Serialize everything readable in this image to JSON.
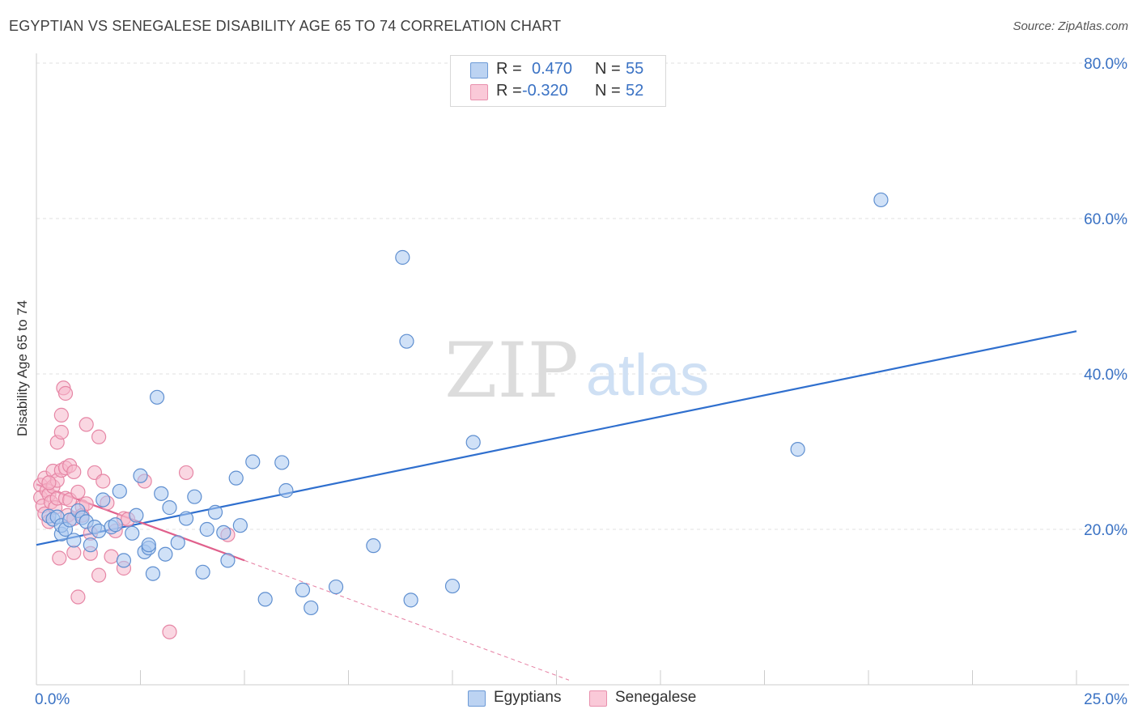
{
  "title": "EGYPTIAN VS SENEGALESE DISABILITY AGE 65 TO 74 CORRELATION CHART",
  "source": "Source: ZipAtlas.com",
  "watermark": {
    "zip": "ZIP",
    "atlas": "atlas"
  },
  "legend": {
    "rows": [
      {
        "r_label": "R =",
        "r_value": "0.470",
        "n_label": "N =",
        "n_value": "55"
      },
      {
        "r_label": "R =",
        "r_value": "-0.320",
        "n_label": "N =",
        "n_value": "52"
      }
    ]
  },
  "bottom_legend": {
    "egyptians": "Egyptians",
    "senegalese": "Senegalese"
  },
  "colors": {
    "egyptians_fill": "#a9c8f0",
    "egyptians_stroke": "#5f8fd0",
    "egyptians_line": "#2f6fce",
    "senegalese_fill": "#f6b7ca",
    "senegalese_stroke": "#e686a5",
    "senegalese_line": "#e0608c",
    "axis_text": "#3a72c4",
    "grid": "#e2e2e2"
  },
  "chart_data": {
    "type": "scatter",
    "title": "EGYPTIAN VS SENEGALESE DISABILITY AGE 65 TO 74 CORRELATION CHART",
    "xlabel": "",
    "ylabel": "Disability Age 65 to 74",
    "xlim": [
      0,
      25
    ],
    "ylim": [
      0,
      80
    ],
    "x_tick_labels": [
      "0.0%",
      "25.0%"
    ],
    "y_tick_labels": [
      "20.0%",
      "40.0%",
      "60.0%",
      "80.0%"
    ],
    "y_ticks": [
      20,
      40,
      60,
      80
    ],
    "grid": true,
    "series": [
      {
        "name": "Egyptians",
        "trend": {
          "x0": 0,
          "y0": 18.0,
          "x1": 25,
          "y1": 45.5,
          "dashed_to": null
        },
        "points": [
          [
            0.3,
            21.7
          ],
          [
            0.4,
            21.3
          ],
          [
            0.5,
            21.6
          ],
          [
            0.6,
            19.4
          ],
          [
            0.6,
            20.5
          ],
          [
            0.7,
            20.0
          ],
          [
            0.8,
            21.2
          ],
          [
            0.9,
            18.6
          ],
          [
            1.0,
            22.4
          ],
          [
            1.1,
            21.5
          ],
          [
            1.2,
            21.0
          ],
          [
            1.3,
            18.0
          ],
          [
            1.4,
            20.3
          ],
          [
            1.5,
            19.8
          ],
          [
            1.6,
            23.8
          ],
          [
            1.8,
            20.3
          ],
          [
            1.9,
            20.6
          ],
          [
            2.0,
            24.9
          ],
          [
            2.1,
            16.0
          ],
          [
            2.3,
            19.5
          ],
          [
            2.4,
            21.8
          ],
          [
            2.5,
            26.9
          ],
          [
            2.6,
            17.1
          ],
          [
            2.7,
            17.6
          ],
          [
            2.8,
            14.3
          ],
          [
            2.9,
            37.0
          ],
          [
            3.0,
            24.6
          ],
          [
            3.1,
            16.8
          ],
          [
            3.2,
            22.8
          ],
          [
            3.4,
            18.3
          ],
          [
            3.6,
            21.4
          ],
          [
            3.8,
            24.2
          ],
          [
            4.0,
            14.5
          ],
          [
            4.1,
            20.0
          ],
          [
            4.3,
            22.2
          ],
          [
            4.5,
            19.6
          ],
          [
            4.6,
            16.0
          ],
          [
            4.8,
            26.6
          ],
          [
            4.9,
            20.5
          ],
          [
            5.2,
            28.7
          ],
          [
            5.5,
            11.0
          ],
          [
            5.9,
            28.6
          ],
          [
            6.0,
            25.0
          ],
          [
            6.4,
            12.2
          ],
          [
            6.6,
            9.9
          ],
          [
            7.2,
            12.6
          ],
          [
            8.1,
            17.9
          ],
          [
            8.8,
            55.0
          ],
          [
            8.9,
            44.2
          ],
          [
            9.0,
            10.9
          ],
          [
            10.0,
            12.7
          ],
          [
            10.5,
            31.2
          ],
          [
            18.3,
            30.3
          ],
          [
            20.3,
            62.4
          ],
          [
            2.7,
            18.0
          ]
        ]
      },
      {
        "name": "Senegalese",
        "trend": {
          "x0": 0,
          "y0": 25.8,
          "x1": 5.0,
          "y1": 16.0,
          "dashed_to": {
            "x": 12.8,
            "y": 0.6
          }
        },
        "points": [
          [
            0.1,
            25.7
          ],
          [
            0.1,
            24.1
          ],
          [
            0.15,
            23.0
          ],
          [
            0.2,
            22.0
          ],
          [
            0.2,
            26.6
          ],
          [
            0.25,
            25.0
          ],
          [
            0.3,
            24.5
          ],
          [
            0.3,
            21.0
          ],
          [
            0.35,
            23.5
          ],
          [
            0.4,
            27.5
          ],
          [
            0.4,
            25.5
          ],
          [
            0.45,
            22.8
          ],
          [
            0.5,
            24.0
          ],
          [
            0.5,
            31.2
          ],
          [
            0.5,
            26.3
          ],
          [
            0.55,
            16.3
          ],
          [
            0.6,
            27.6
          ],
          [
            0.6,
            34.7
          ],
          [
            0.6,
            32.5
          ],
          [
            0.65,
            38.2
          ],
          [
            0.7,
            37.5
          ],
          [
            0.7,
            27.9
          ],
          [
            0.7,
            24.0
          ],
          [
            0.75,
            21.8
          ],
          [
            0.8,
            28.2
          ],
          [
            0.8,
            23.8
          ],
          [
            0.9,
            17.0
          ],
          [
            0.9,
            27.4
          ],
          [
            0.9,
            21.4
          ],
          [
            1.0,
            24.8
          ],
          [
            1.0,
            11.3
          ],
          [
            1.1,
            22.9
          ],
          [
            1.1,
            21.8
          ],
          [
            1.2,
            33.5
          ],
          [
            1.2,
            23.3
          ],
          [
            1.3,
            16.9
          ],
          [
            1.3,
            19.5
          ],
          [
            1.4,
            27.3
          ],
          [
            1.5,
            14.1
          ],
          [
            1.5,
            31.9
          ],
          [
            1.6,
            26.2
          ],
          [
            1.7,
            23.4
          ],
          [
            1.8,
            16.5
          ],
          [
            1.9,
            19.8
          ],
          [
            2.1,
            21.4
          ],
          [
            2.1,
            15.0
          ],
          [
            2.2,
            21.3
          ],
          [
            2.6,
            26.2
          ],
          [
            3.2,
            6.8
          ],
          [
            3.6,
            27.3
          ],
          [
            4.6,
            19.3
          ],
          [
            0.3,
            26.0
          ]
        ]
      }
    ]
  }
}
